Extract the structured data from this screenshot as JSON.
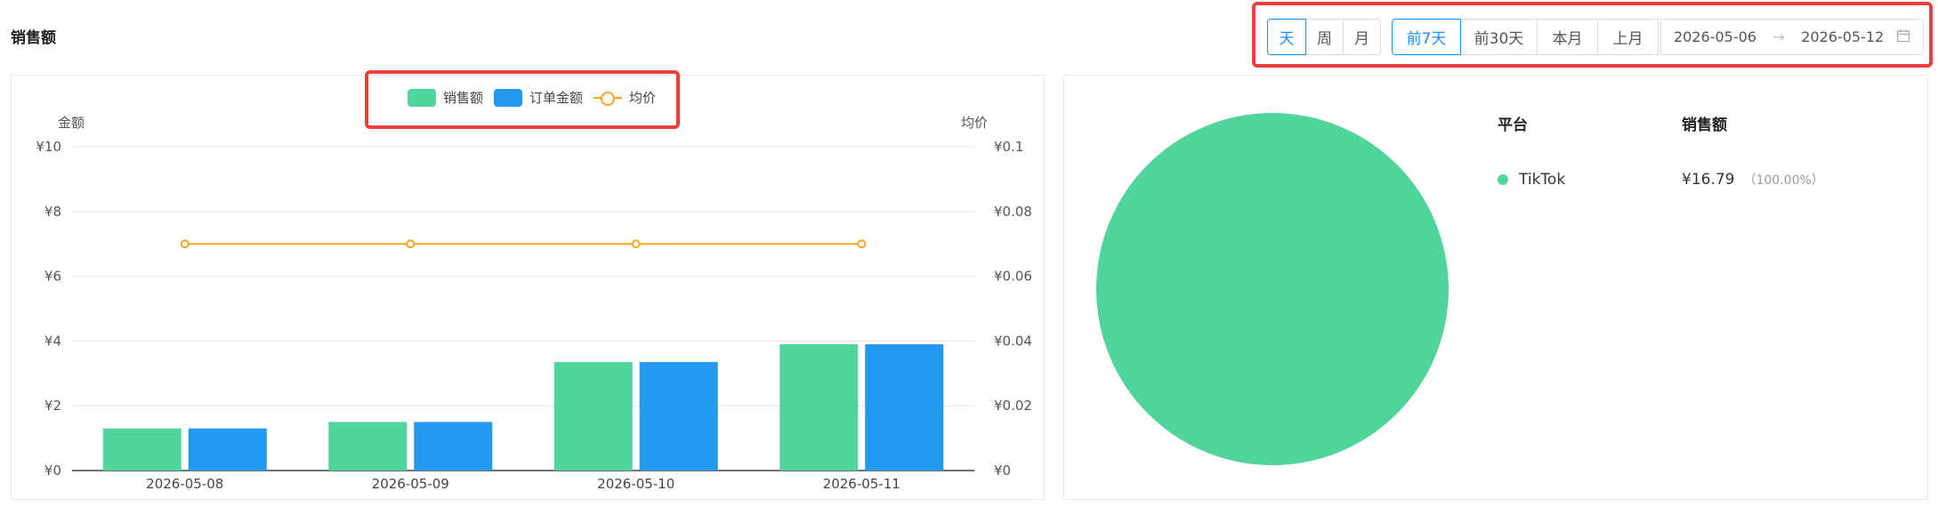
{
  "header": {
    "title": "销售额"
  },
  "filters": {
    "granularity": [
      {
        "label": "天",
        "active": true
      },
      {
        "label": "周",
        "active": false
      },
      {
        "label": "月",
        "active": false
      }
    ],
    "ranges": [
      {
        "label": "前7天",
        "active": true
      },
      {
        "label": "前30天",
        "active": false
      },
      {
        "label": "本月",
        "active": false
      },
      {
        "label": "上月",
        "active": false
      }
    ],
    "date_start": "2026-05-06",
    "date_separator": "→",
    "date_end": "2026-05-12",
    "calendar_icon": "calendar-icon"
  },
  "legend": {
    "sales": "销售额",
    "orders": "订单金额",
    "avg": "均价"
  },
  "colors": {
    "sales": "#50d49b",
    "orders": "#2399f0",
    "avg": "#f5a623",
    "accent": "#1890ff"
  },
  "chart_data": {
    "type": "bar",
    "categories": [
      "2026-05-08",
      "2026-05-09",
      "2026-05-10",
      "2026-05-11"
    ],
    "series": [
      {
        "name": "销售额",
        "type": "bar",
        "axis": "left",
        "values": [
          1.3,
          1.5,
          3.35,
          3.9
        ]
      },
      {
        "name": "订单金额",
        "type": "bar",
        "axis": "left",
        "values": [
          1.3,
          1.5,
          3.35,
          3.9
        ]
      },
      {
        "name": "均价",
        "type": "line",
        "axis": "right",
        "values": [
          0.07,
          0.07,
          0.07,
          0.07
        ]
      }
    ],
    "ylabel": "金额",
    "y2label": "均价",
    "ylim": [
      0,
      10
    ],
    "y2lim": [
      0,
      0.1
    ],
    "yticks": [
      "¥0",
      "¥2",
      "¥4",
      "¥6",
      "¥8",
      "¥10"
    ],
    "y2ticks": [
      "¥0",
      "¥0.02",
      "¥0.04",
      "¥0.06",
      "¥0.08",
      "¥0.1"
    ],
    "grid": true,
    "legend_position": "top-center"
  },
  "platform": {
    "col_platform": "平台",
    "col_sales": "销售额",
    "rows": [
      {
        "name": "TikTok",
        "value": "¥16.79",
        "pct": "（100.00%）",
        "share": 1.0
      }
    ]
  }
}
